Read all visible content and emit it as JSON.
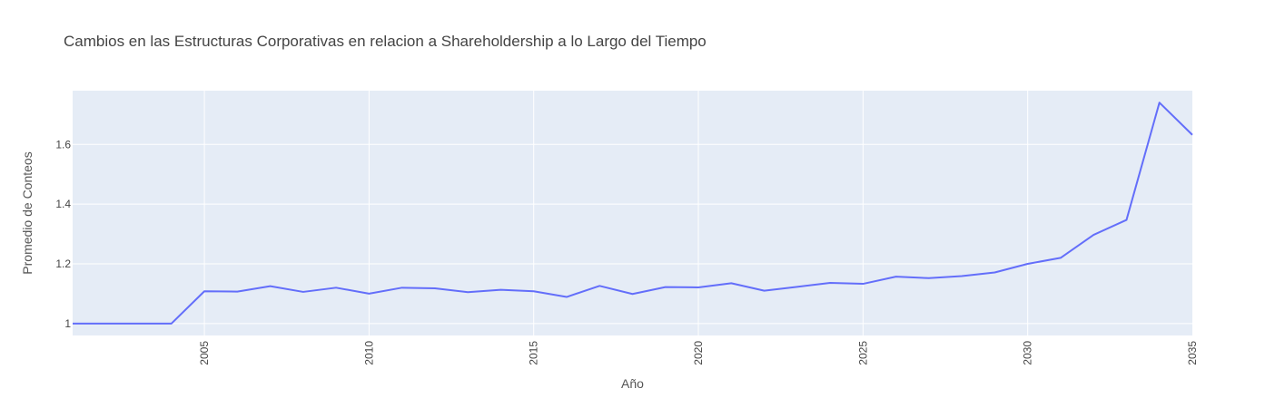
{
  "chart_data": {
    "type": "line",
    "title": "Cambios en las Estructuras Corporativas en relacion a Shareholdership a lo Largo del Tiempo",
    "xlabel": "Año",
    "ylabel": "Promedio de Conteos",
    "xlim": [
      2001,
      2035
    ],
    "ylim": [
      0.96,
      1.78
    ],
    "x_ticks": [
      "2005",
      "2010",
      "2015",
      "2020",
      "2025",
      "2030",
      "2035"
    ],
    "y_ticks": [
      "1",
      "1.2",
      "1.4",
      "1.6"
    ],
    "grid": true,
    "legend": "none",
    "colors": {
      "line": "#636efa",
      "plot_bg": "#e5ecf6",
      "grid": "#ffffff"
    },
    "series": [
      {
        "x": [
          2001,
          2002,
          2003,
          2004,
          2005,
          2006,
          2007,
          2008,
          2009,
          2010,
          2011,
          2012,
          2013,
          2014,
          2015,
          2016,
          2017,
          2018,
          2019,
          2020,
          2021,
          2022,
          2023,
          2024,
          2025,
          2026,
          2027,
          2028,
          2029,
          2030,
          2031,
          2032,
          2033,
          2034,
          2035
        ],
        "y": [
          1.0,
          1.0,
          1.0,
          1.0,
          1.108,
          1.107,
          1.125,
          1.106,
          1.12,
          1.1,
          1.12,
          1.118,
          1.105,
          1.113,
          1.108,
          1.089,
          1.126,
          1.099,
          1.122,
          1.121,
          1.135,
          1.11,
          1.123,
          1.136,
          1.133,
          1.157,
          1.152,
          1.159,
          1.171,
          1.2,
          1.22,
          1.297,
          1.347,
          1.74,
          1.632
        ]
      }
    ]
  }
}
